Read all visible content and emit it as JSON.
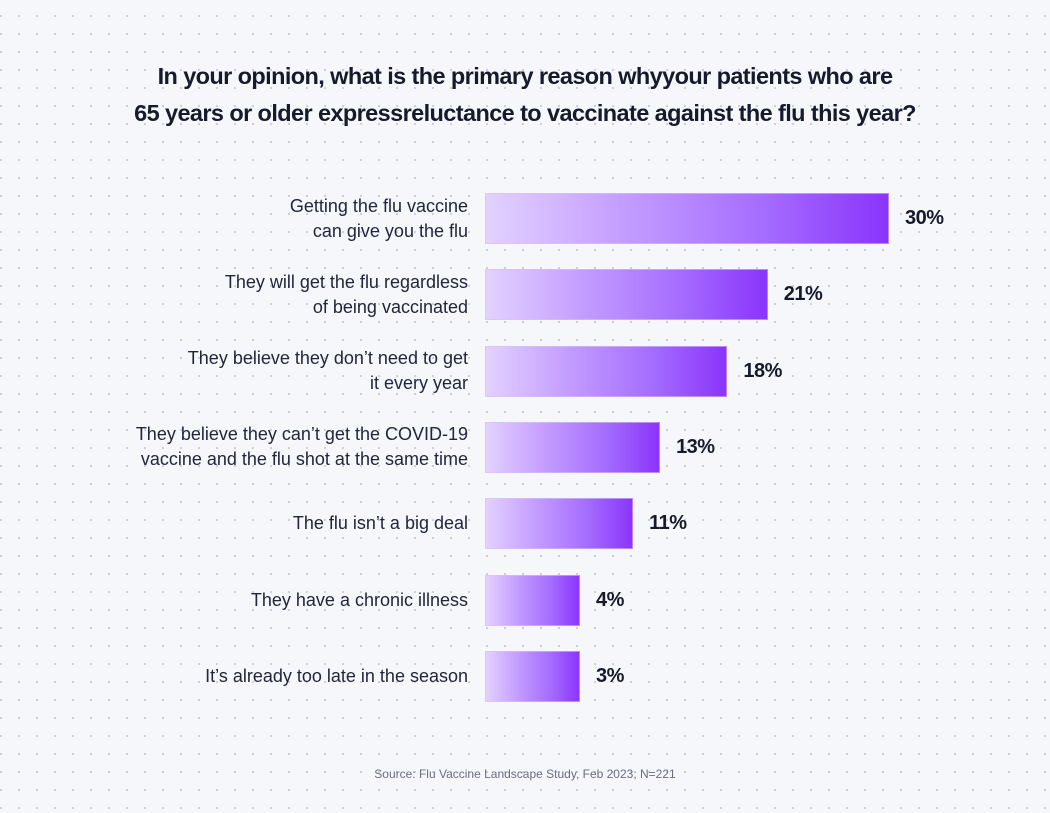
{
  "chart_data": {
    "type": "bar",
    "orientation": "horizontal",
    "title": "In your opinion, what is the primary reason whyyour patients who are 65 years or older expressreluctance to vaccinate against the flu this year?",
    "title_lines": [
      "In your opinion, what is the primary reason whyyour patients who are",
      "65 years or older expressreluctance to vaccinate against the flu this year?"
    ],
    "categories": [
      [
        "Getting the flu vaccine",
        "can give you the flu"
      ],
      [
        "They will get the flu regardless",
        "of being vaccinated"
      ],
      [
        "They believe they don’t need to get",
        "it every year"
      ],
      [
        "They believe they can’t get the COVID-19",
        "vaccine and the flu shot at the same time"
      ],
      [
        "The flu isn’t a big deal"
      ],
      [
        "They have a chronic illness"
      ],
      [
        "It’s already too late in the season"
      ]
    ],
    "values": [
      30,
      21,
      18,
      13,
      11,
      4,
      3
    ],
    "value_labels": [
      "30%",
      "21%",
      "18%",
      "13%",
      "11%",
      "4%",
      "3%"
    ],
    "unit": "%",
    "xlim": [
      0,
      30
    ],
    "xlabel": "",
    "ylabel": "",
    "grid": false,
    "legend": "none",
    "bar_gradient": [
      "#e3d2ff",
      "#8a34fb"
    ],
    "source": "Source: Flu Vaccine Landscape Study, Feb 2023; N=221"
  }
}
